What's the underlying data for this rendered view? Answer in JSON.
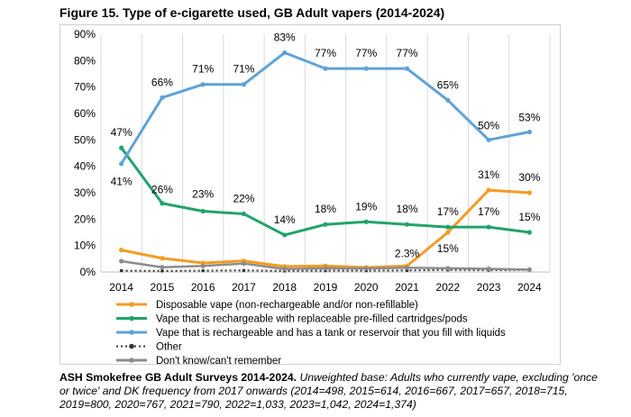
{
  "figure_title": "Figure 15. Type of e-cigarette used, GB Adult vapers (2014-2024)",
  "footnote": {
    "source": "ASH Smokefree GB Adult Surveys 2014-2024.",
    "description": "Unweighted base: Adults who currently vape, excluding 'once or twice' and DK frequency from 2017 onwards (2014=498, 2015=614, 2016=667, 2017=657, 2018=715, 2019=800, 2020=767, 2021=790, 2022=1,033, 2023=1,042, 2024=1,374)"
  },
  "chart_data": {
    "type": "line",
    "title": "",
    "xlabel": "",
    "ylabel": "",
    "x": [
      "2014",
      "2015",
      "2016",
      "2017",
      "2018",
      "2019",
      "2020",
      "2021",
      "2022",
      "2023",
      "2024"
    ],
    "ylim": [
      0,
      90
    ],
    "yticks": [
      "0%",
      "10%",
      "20%",
      "30%",
      "40%",
      "50%",
      "60%",
      "70%",
      "80%",
      "90%"
    ],
    "grid": "vertical",
    "legend_position": "bottom",
    "series": [
      {
        "name": "Disposable vape (non-rechargeable and/or non-refillable)",
        "color": "#f39c24",
        "style": "solid",
        "values": [
          8.3,
          5.2,
          3.4,
          4.2,
          2.1,
          2.3,
          1.7,
          2.3,
          15,
          31,
          30
        ],
        "labels": [
          null,
          null,
          null,
          null,
          null,
          null,
          null,
          "2.3%",
          "15%",
          "31%",
          "30%"
        ]
      },
      {
        "name": "Vape that is rechargeable with replaceable pre-filled cartridges/pods",
        "color": "#21a369",
        "style": "solid",
        "values": [
          47,
          26,
          23,
          22,
          14,
          18,
          19,
          18,
          17,
          17,
          15
        ],
        "labels": [
          "47%",
          "26%",
          "23%",
          "22%",
          "14%",
          "18%",
          "19%",
          "18%",
          "17%",
          "17%",
          "15%"
        ]
      },
      {
        "name": "Vape that is rechargeable and has a tank or reservoir that you fill with liquids",
        "color": "#5fa2d9",
        "style": "solid",
        "values": [
          41,
          66,
          71,
          71,
          83,
          77,
          77,
          77,
          65,
          50,
          53
        ],
        "labels": [
          "41%",
          "66%",
          "71%",
          "71%",
          "83%",
          "77%",
          "77%",
          "77%",
          "65%",
          "50%",
          "53%"
        ]
      },
      {
        "name": "Other",
        "color": "#333333",
        "style": "dotted",
        "values": [
          0.5,
          0.4,
          0.5,
          0.6,
          0.4,
          0.5,
          0.5,
          0.6,
          0.8,
          0.7,
          0.8
        ],
        "labels": []
      },
      {
        "name": "Don't know/can't remember",
        "color": "#8c8c8c",
        "style": "solid",
        "values": [
          4.1,
          1.8,
          2.3,
          3.2,
          1.1,
          1.4,
          1.3,
          1.6,
          1.4,
          1.2,
          0.9
        ],
        "labels": []
      }
    ]
  }
}
